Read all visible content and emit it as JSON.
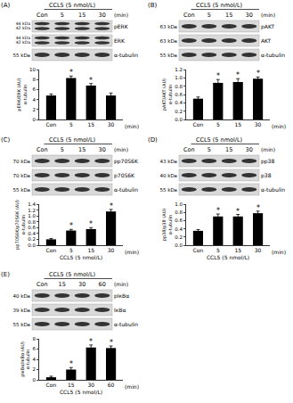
{
  "chart_data": [
    {
      "type": "bar",
      "panel": "(A)",
      "header": "CCL5 (5 nmol/L)",
      "blot_lanes": [
        "Con",
        "5",
        "15",
        "30"
      ],
      "lane_unit": "(min)",
      "blots": [
        {
          "label": "pERK",
          "kda": [
            "44 kDa",
            "42 kDa"
          ]
        },
        {
          "label": "ERK",
          "kda": [
            "44 kDa",
            "42 kDa"
          ]
        },
        {
          "label": "α-tubulin",
          "kda": [
            "55 kDa"
          ]
        }
      ],
      "categories": [
        "Con",
        "5",
        "15",
        "30"
      ],
      "values": [
        4.8,
        8.3,
        6.8,
        4.8
      ],
      "errors": [
        0.3,
        0.4,
        0.4,
        0.5
      ],
      "significance": [
        null,
        "*",
        "*",
        null
      ],
      "color": "#000000",
      "y_label": [
        "pERK/ERK (AU)",
        "α-tubulin"
      ],
      "x_unit": "(min)",
      "ylim": [
        0,
        10
      ],
      "yticks": [
        0,
        2,
        4,
        6,
        8,
        10
      ],
      "grid": false
    },
    {
      "type": "bar",
      "panel": "(B)",
      "header": "CCL5 (5 nmol/L)",
      "blot_lanes": [
        "Con",
        "5",
        "15",
        "30"
      ],
      "lane_unit": "(min)",
      "blots": [
        {
          "label": "pAKT",
          "kda": [
            "63 kDa"
          ]
        },
        {
          "label": "AKT",
          "kda": [
            "63 kDa"
          ]
        },
        {
          "label": "α-tubulin",
          "kda": [
            "55 kDa"
          ]
        }
      ],
      "categories": [
        "Con",
        "5",
        "15",
        "30"
      ],
      "values": [
        0.5,
        0.88,
        0.9,
        0.98
      ],
      "errors": [
        0.04,
        0.08,
        0.08,
        0.04
      ],
      "significance": [
        null,
        "*",
        "*",
        "*"
      ],
      "color": "#000000",
      "y_label": [
        "pAKT/AKT (AU)",
        "α-tubulin"
      ],
      "x_unit": "(min)",
      "ylim": [
        0,
        1.2
      ],
      "yticks": [
        {
          "value": 0,
          "label": "0.0"
        },
        {
          "value": 0.2,
          "label": "0.2"
        },
        {
          "value": 0.4,
          "label": "0.4"
        },
        {
          "value": 0.6,
          "label": "0.6"
        },
        {
          "value": 0.8,
          "label": "0.8"
        },
        {
          "value": 1.0,
          "label": "1.0"
        },
        {
          "value": 1.2,
          "label": "1.2"
        }
      ],
      "grid": false
    },
    {
      "type": "bar",
      "panel": "(C)",
      "header": "CCL5 (5 nmol/L)",
      "blot_lanes": [
        "Con",
        "5",
        "15",
        "30"
      ],
      "lane_unit": "(min)",
      "blots": [
        {
          "label": "pp70S6K",
          "kda": [
            "70 kDa"
          ]
        },
        {
          "label": "p70S6K",
          "kda": [
            "70 kDa"
          ]
        },
        {
          "label": "α-tubulin",
          "kda": [
            "55 kDa"
          ]
        }
      ],
      "categories": [
        "Con",
        "5",
        "15",
        "30"
      ],
      "values": [
        0.2,
        0.5,
        0.55,
        1.15
      ],
      "errors": [
        0.03,
        0.04,
        0.05,
        0.07
      ],
      "significance": [
        null,
        "*",
        "*",
        "*"
      ],
      "color": "#000000",
      "y_label": [
        "pp70S6K/p70S6K (AU)",
        "α-tubulin"
      ],
      "x_unit": "(min)",
      "x_title": "CCL5 (5 nmol/L)",
      "ylim": [
        0,
        1.4
      ],
      "yticks": [
        {
          "value": 0,
          "label": "0.0"
        },
        {
          "value": 0.2,
          "label": "0.2"
        },
        {
          "value": 0.4,
          "label": "0.4"
        },
        {
          "value": 0.6,
          "label": "0.6"
        },
        {
          "value": 0.8,
          "label": "0.8"
        },
        {
          "value": 1.0,
          "label": "1.0"
        },
        {
          "value": 1.2,
          "label": "1.2"
        },
        {
          "value": 1.4,
          "label": "1.4"
        }
      ],
      "grid": false
    },
    {
      "type": "bar",
      "panel": "(D)",
      "header": "CCL5 (5 nmol/L)",
      "blot_lanes": [
        "Con",
        "5",
        "15",
        "30"
      ],
      "lane_unit": "(min)",
      "blots": [
        {
          "label": "pp38",
          "kda": [
            "43 kDa"
          ]
        },
        {
          "label": "p38",
          "kda": [
            "40 kDa"
          ]
        },
        {
          "label": "α-tubulin",
          "kda": [
            "55 kDa"
          ]
        }
      ],
      "categories": [
        "Con",
        "5",
        "15",
        "30"
      ],
      "values": [
        0.35,
        0.7,
        0.7,
        0.78
      ],
      "errors": [
        0.03,
        0.06,
        0.05,
        0.05
      ],
      "significance": [
        null,
        "*",
        "*",
        "*"
      ],
      "color": "#000000",
      "y_label": [
        "pp38/p38 (AU)",
        "α-tubulin"
      ],
      "x_unit": "(min)",
      "x_title": "CCL5 (5 nmol/L)",
      "ylim": [
        0,
        1.0
      ],
      "yticks": [
        {
          "value": 0,
          "label": "0.0"
        },
        {
          "value": 0.2,
          "label": "0.2"
        },
        {
          "value": 0.4,
          "label": "0.4"
        },
        {
          "value": 0.6,
          "label": "0.6"
        },
        {
          "value": 0.8,
          "label": "0.8"
        },
        {
          "value": 1.0,
          "label": "1.0"
        }
      ],
      "grid": false
    },
    {
      "type": "bar",
      "panel": "(E)",
      "header": "CCL5 (5 nmol/L)",
      "blot_lanes": [
        "Con",
        "15",
        "30",
        "60"
      ],
      "lane_unit": "(min)",
      "blots": [
        {
          "label": "pIκBα",
          "kda": [
            "40 kDa"
          ]
        },
        {
          "label": "IκBα",
          "kda": [
            "39 kDa"
          ]
        },
        {
          "label": "α-tubulin",
          "kda": [
            "55 kDa"
          ]
        }
      ],
      "categories": [
        "Con",
        "15",
        "30",
        "60"
      ],
      "values": [
        0.5,
        2.0,
        6.3,
        6.2
      ],
      "errors": [
        0.2,
        0.4,
        0.5,
        0.4
      ],
      "significance": [
        null,
        "*",
        "*",
        "*"
      ],
      "color": "#000000",
      "y_label": [
        "pIκBα/IκBα (AU)",
        "α-tubulin"
      ],
      "x_unit": "(min)",
      "x_title": "CCL5 (5 nmol/L)",
      "ylim": [
        0,
        8
      ],
      "yticks": [
        0,
        2,
        4,
        6,
        8
      ],
      "grid": false
    }
  ]
}
